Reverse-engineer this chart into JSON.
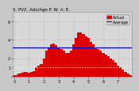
{
  "title": "S. PV/I. Adv/Age P. W. A. E.",
  "legend_actual": "Actual",
  "legend_avg": "Average",
  "background_color": "#c8c8c8",
  "plot_bg_color": "#d8d8d8",
  "bar_color": "#dd0000",
  "bar_edge_color": "#dd0000",
  "avg_line_color": "#0000cc",
  "dashed_line_color": "#ffffff",
  "grid_color": "#aaaaaa",
  "x_positions": [
    0,
    1,
    2,
    3,
    4,
    5,
    6,
    7,
    8,
    9,
    10,
    11,
    12,
    13,
    14,
    15,
    16,
    17,
    18,
    19,
    20,
    21,
    22,
    23,
    24,
    25,
    26,
    27,
    28,
    29,
    30,
    31,
    32,
    33,
    34,
    35,
    36,
    37,
    38,
    39,
    40,
    41,
    42,
    43,
    44,
    45,
    46,
    47
  ],
  "bar_heights": [
    0.2,
    0.2,
    0.3,
    0.4,
    0.5,
    0.5,
    0.4,
    0.5,
    0.6,
    1.0,
    1.2,
    1.4,
    2.0,
    2.8,
    3.2,
    3.5,
    3.6,
    3.4,
    3.2,
    3.0,
    2.8,
    2.6,
    2.6,
    2.8,
    3.5,
    4.2,
    4.8,
    4.8,
    4.6,
    4.4,
    4.2,
    3.8,
    3.5,
    3.2,
    3.0,
    2.8,
    2.6,
    2.4,
    2.2,
    2.0,
    1.8,
    1.5,
    1.2,
    1.0,
    0.8,
    0.5,
    0.3,
    0.2
  ],
  "avg_line_y": 3.2,
  "dashed_line_y": 1.0,
  "ylim": [
    0,
    7
  ],
  "xlim": [
    -0.5,
    47.5
  ],
  "yticks": [
    0,
    1,
    2,
    4,
    6
  ],
  "ytick_labels": [
    "",
    "1",
    "2",
    "4",
    "6"
  ],
  "xtick_positions": [
    0,
    6,
    12,
    18,
    24,
    30,
    36,
    42
  ],
  "xtick_labels": [
    "0",
    "1",
    "2",
    "3",
    "4",
    "5",
    "6",
    "7"
  ],
  "title_fontsize": 4.0,
  "tick_fontsize": 3.5,
  "legend_fontsize": 3.5
}
